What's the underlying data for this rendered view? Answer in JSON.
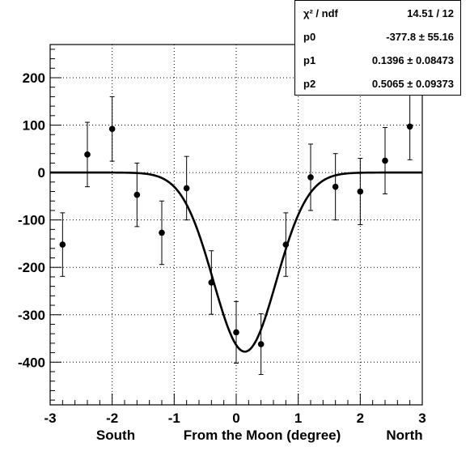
{
  "chart_data": {
    "type": "scatter",
    "title": "",
    "xlabel": "From the Moon (degree)",
    "xlabel_left": "South",
    "xlabel_right": "North",
    "ylabel": "",
    "xlim": [
      -3,
      3
    ],
    "ylim": [
      -490,
      270
    ],
    "grid": true,
    "x_ticks": [
      -3,
      -2,
      -1,
      0,
      1,
      2,
      3
    ],
    "y_ticks": [
      200,
      100,
      0,
      -100,
      -200,
      -300,
      -400
    ],
    "series": [
      {
        "kind": "points_with_errors",
        "x": [
          -2.8,
          -2.4,
          -2.0,
          -1.6,
          -1.2,
          -0.8,
          -0.4,
          0.0,
          0.4,
          0.8,
          1.2,
          1.6,
          2.0,
          2.4,
          2.8
        ],
        "y": [
          -152,
          38,
          92,
          -47,
          -127,
          -33,
          -232,
          -337,
          -362,
          -152,
          -10,
          -30,
          -40,
          25,
          97
        ],
        "yerr": [
          67,
          68,
          68,
          67,
          67,
          67,
          67,
          65,
          64,
          67,
          70,
          70,
          70,
          70,
          70
        ]
      },
      {
        "kind": "fit_curve",
        "function": "gaussian",
        "p0": -377.8,
        "p1": 0.1396,
        "p2": 0.5065
      }
    ],
    "stats_box": {
      "position": "top-right",
      "rows": [
        {
          "label": "χ² / ndf",
          "value": "14.51 / 12"
        },
        {
          "label": "p0",
          "value": "-377.8 ± 55.16"
        },
        {
          "label": "p1",
          "value": "0.1396 ± 0.08473"
        },
        {
          "label": "p2",
          "value": "0.5065 ± 0.09373"
        }
      ]
    }
  }
}
